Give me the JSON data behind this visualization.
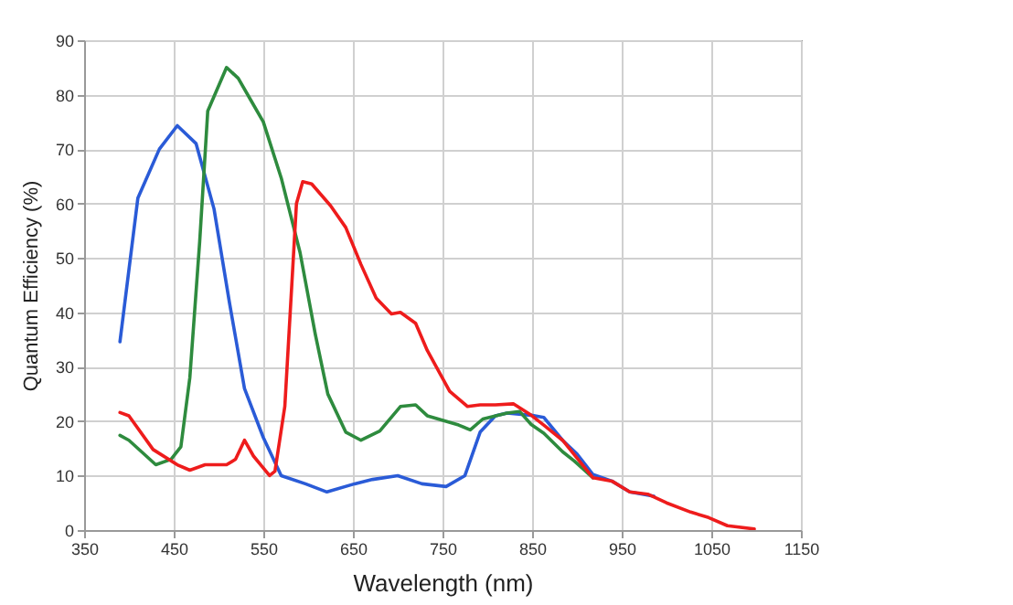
{
  "chart_data": {
    "type": "line",
    "xlabel": "Wavelength (nm)",
    "ylabel": "Quantum Efficiency (%)",
    "xlim": [
      350,
      1150
    ],
    "xticks": [
      350,
      450,
      550,
      650,
      750,
      850,
      950,
      1050,
      1150
    ],
    "ylim": [
      0,
      90
    ],
    "yticks": [
      0,
      10,
      20,
      30,
      40,
      50,
      60,
      70,
      80,
      90
    ],
    "grid": true,
    "line_style": "solid",
    "series": [
      {
        "color": "#2a5bd7",
        "x": [
          390,
          410,
          434,
          454,
          475,
          495,
          512,
          529,
          550,
          570,
          597,
          621,
          652,
          672,
          700,
          727,
          754,
          775,
          792,
          809,
          822,
          849,
          863,
          884,
          900,
          918,
          939,
          959,
          986
        ],
        "values": [
          34.6,
          61,
          70,
          74.3,
          71,
          59,
          42,
          26,
          17,
          10,
          8.5,
          7,
          8.5,
          9.3,
          10,
          8.5,
          8,
          10,
          18,
          21,
          21.5,
          21.1,
          20.7,
          16.5,
          14,
          10.2,
          9,
          7,
          6.2
        ]
      },
      {
        "color": "#2e8b3e",
        "x": [
          390,
          400,
          430,
          447,
          458,
          468,
          479,
          488,
          509,
          522,
          536,
          550,
          570,
          591,
          608,
          622,
          642,
          659,
          680,
          703,
          720,
          733,
          768,
          781,
          795,
          822,
          836,
          849,
          863,
          884,
          897,
          918
        ],
        "values": [
          17.4,
          16.5,
          12,
          13,
          15.3,
          28,
          53,
          77,
          85,
          83,
          79,
          75,
          64.7,
          51,
          36,
          25,
          18,
          16.5,
          18.2,
          22.7,
          23,
          21,
          19.3,
          18.4,
          20.4,
          21.5,
          21.8,
          19.4,
          17.8,
          14.4,
          12.7,
          9.6
        ]
      },
      {
        "color": "#ee1c1c",
        "x": [
          390,
          400,
          427,
          454,
          468,
          485,
          509,
          519,
          529,
          539,
          557,
          563,
          574,
          587,
          594,
          604,
          625,
          642,
          659,
          676,
          693,
          703,
          720,
          733,
          758,
          778,
          792,
          809,
          829,
          849,
          863,
          884,
          918,
          939,
          959,
          979,
          1000,
          1027,
          1047,
          1068,
          1098
        ],
        "values": [
          21.6,
          21,
          14.8,
          12,
          11,
          12,
          12,
          13,
          16.5,
          13.6,
          10,
          10.8,
          22.7,
          60,
          64,
          63.6,
          59.6,
          55.6,
          48.8,
          42.6,
          39.7,
          40,
          38,
          33,
          25.5,
          22.7,
          23,
          23,
          23.2,
          21.1,
          19.3,
          16.5,
          9.6,
          9,
          7,
          6.6,
          5,
          3.3,
          2.3,
          0.8,
          0.2
        ]
      }
    ]
  }
}
